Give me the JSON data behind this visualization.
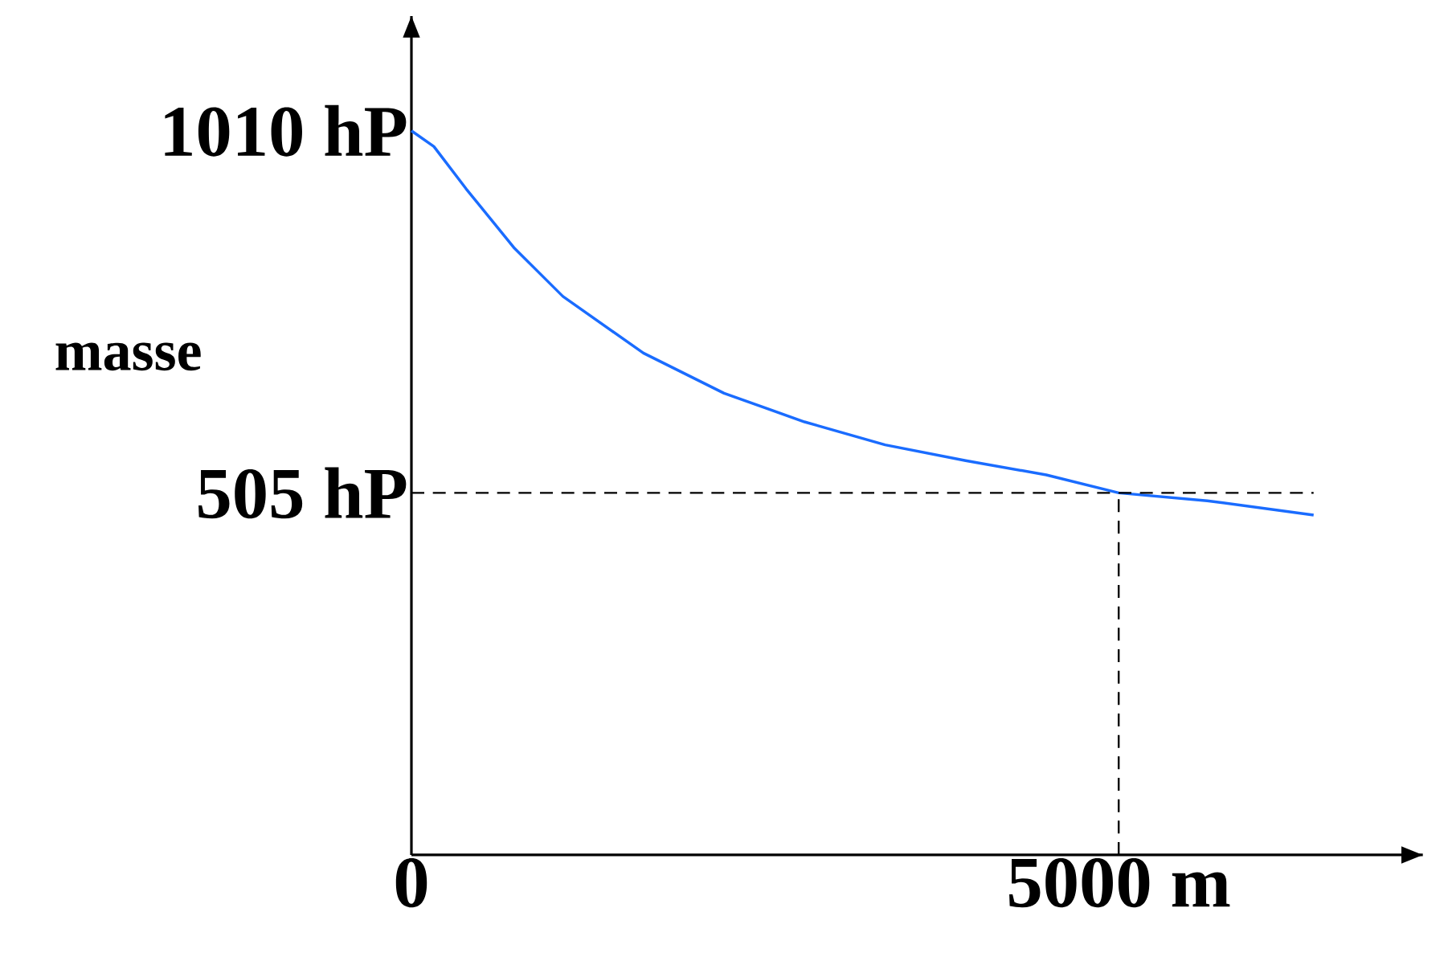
{
  "chart_data": {
    "type": "line",
    "ylabel": "masse",
    "x": [
      0,
      159,
      387,
      729,
      1071,
      1640,
      2210,
      2779,
      3349,
      3918,
      4488,
      5000,
      5626,
      6378
    ],
    "series": [
      {
        "color": "#1a6cff",
        "values": [
          1010,
          988,
          929,
          846,
          779,
          700,
          644,
          604,
          572,
          550,
          530,
          505,
          494,
          474
        ]
      }
    ],
    "xlim": [
      0,
      7150
    ],
    "ylim": [
      0,
      1170
    ],
    "xticks": [
      0,
      {
        "value": 5000,
        "label": "5000 m"
      }
    ],
    "yticks": [
      {
        "value": 505,
        "label": "505 hP"
      },
      {
        "value": 1010,
        "label": "1010 hP"
      }
    ],
    "ref_lines": [
      {
        "axis": "y",
        "value": 505,
        "line_style": "dashed"
      },
      {
        "axis": "x",
        "value": 5000,
        "line_style": "dashed"
      }
    ],
    "marker": "none"
  }
}
